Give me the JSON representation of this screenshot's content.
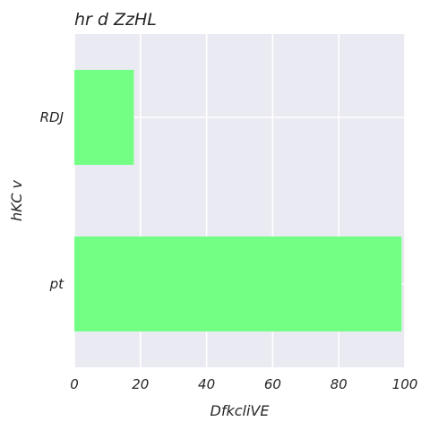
{
  "chart_data": {
    "type": "bar",
    "orientation": "horizontal",
    "title": "hr d ZzHL",
    "xlabel": "DfkcliVE",
    "ylabel": "hKC v",
    "categories": [
      "RDJ",
      "pt"
    ],
    "values": [
      18,
      99
    ],
    "xlim": [
      0,
      100
    ],
    "xticks": [
      0,
      20,
      40,
      60,
      80,
      100
    ],
    "grid": true,
    "bar_color": "#73ff84",
    "background_color": "#eaeaf2"
  }
}
